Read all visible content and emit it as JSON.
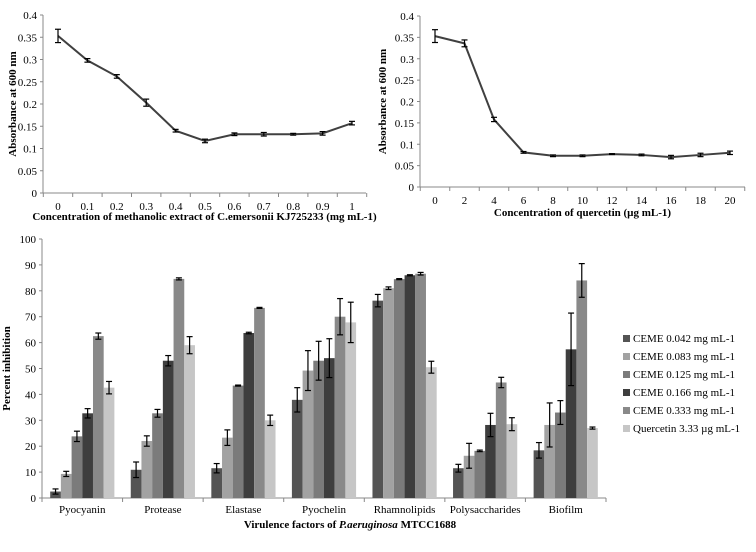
{
  "chart_data": [
    {
      "type": "line",
      "title": "",
      "xlabel": "Concentration of methanolic extract of C.emersonii KJ725233 (mg mL-1)",
      "ylabel": "Absorbance at 600 nm",
      "x": [
        "0",
        "0.1",
        "0.2",
        "0.3",
        "0.4",
        "0.5",
        "0.6",
        "0.7",
        "0.8",
        "0.9",
        "1"
      ],
      "values": [
        0.353,
        0.298,
        0.262,
        0.203,
        0.14,
        0.117,
        0.132,
        0.132,
        0.132,
        0.134,
        0.157
      ],
      "errors": [
        0.015,
        0.004,
        0.004,
        0.008,
        0.003,
        0.004,
        0.003,
        0.004,
        0.002,
        0.004,
        0.004
      ],
      "yticks": [
        "0",
        "0.05",
        "0.1",
        "0.15",
        "0.2",
        "0.25",
        "0.3",
        "0.35",
        "0.4"
      ],
      "ylim": [
        0,
        0.4
      ]
    },
    {
      "type": "line",
      "title": "",
      "xlabel": "Concentration of quercetin (µg mL-1)",
      "ylabel": "Absorbance at 600 nm",
      "x": [
        "0",
        "2",
        "4",
        "6",
        "8",
        "10",
        "12",
        "14",
        "16",
        "18",
        "20"
      ],
      "values": [
        0.353,
        0.336,
        0.158,
        0.081,
        0.073,
        0.073,
        0.077,
        0.075,
        0.07,
        0.075,
        0.08
      ],
      "errors": [
        0.015,
        0.008,
        0.005,
        0.002,
        0.002,
        0.002,
        0.001,
        0.002,
        0.004,
        0.004,
        0.004
      ],
      "yticks": [
        "0",
        "0.05",
        "0.1",
        "0.15",
        "0.2",
        "0.25",
        "0.3",
        "0.35",
        "0.4"
      ],
      "ylim": [
        0,
        0.4
      ]
    },
    {
      "type": "bar",
      "title": "",
      "xlabel_prefix": "Virulence factors of ",
      "xlabel_italic": "P.aeruginosa",
      "xlabel_suffix": " MTCC1688",
      "ylabel": "Percent inhibition",
      "categories": [
        "Pyocyanin",
        "Protease",
        "Elastase",
        "Pyochelin",
        "Rhamnolipids",
        "Polysaccharides",
        "Biofilm"
      ],
      "yticks": [
        "0",
        "10",
        "20",
        "30",
        "40",
        "50",
        "60",
        "70",
        "80",
        "90",
        "100"
      ],
      "ylim": [
        0,
        100
      ],
      "legend_position": "right",
      "series": [
        {
          "name": "CEME 0.042 mg mL-1",
          "color": "#545454",
          "values": [
            2.5,
            10.9,
            11.5,
            37.9,
            76.2,
            11.5,
            18.4
          ],
          "errors": [
            1.0,
            3.0,
            1.8,
            4.7,
            2.4,
            1.5,
            3.0
          ]
        },
        {
          "name": "CEME 0.083 mg mL-1",
          "color": "#a2a2a2",
          "values": [
            9.3,
            22.0,
            23.3,
            49.2,
            81.0,
            16.3,
            28.2
          ],
          "errors": [
            1.0,
            2.0,
            3.0,
            7.7,
            0.5,
            4.8,
            8.5
          ]
        },
        {
          "name": "CEME 0.125 mg mL-1",
          "color": "#7b7b7b",
          "values": [
            23.8,
            32.7,
            43.4,
            53.0,
            84.5,
            18.2,
            33.0
          ],
          "errors": [
            2.0,
            1.5,
            0.2,
            7.5,
            0.2,
            0.3,
            4.6
          ]
        },
        {
          "name": "CEME 0.166 mg mL-1",
          "color": "#3e3e3e",
          "values": [
            32.7,
            53.0,
            63.7,
            54.0,
            86.0,
            28.2,
            57.4
          ],
          "errors": [
            1.8,
            2.0,
            0.3,
            7.5,
            0.2,
            4.5,
            14.0
          ]
        },
        {
          "name": "CEME 0.333 mg mL-1",
          "color": "#898989",
          "values": [
            62.5,
            84.6,
            73.4,
            70.0,
            86.6,
            44.6,
            84.0
          ],
          "errors": [
            1.2,
            0.4,
            0.2,
            7.0,
            0.5,
            2.0,
            6.5
          ]
        },
        {
          "name": "Quercetin 3.33 µg mL-1",
          "color": "#c6c6c6",
          "values": [
            42.6,
            59.0,
            30.0,
            67.8,
            50.5,
            28.5,
            27.0
          ],
          "errors": [
            2.4,
            3.3,
            2.0,
            7.8,
            2.3,
            2.5,
            0.4
          ]
        }
      ]
    }
  ]
}
